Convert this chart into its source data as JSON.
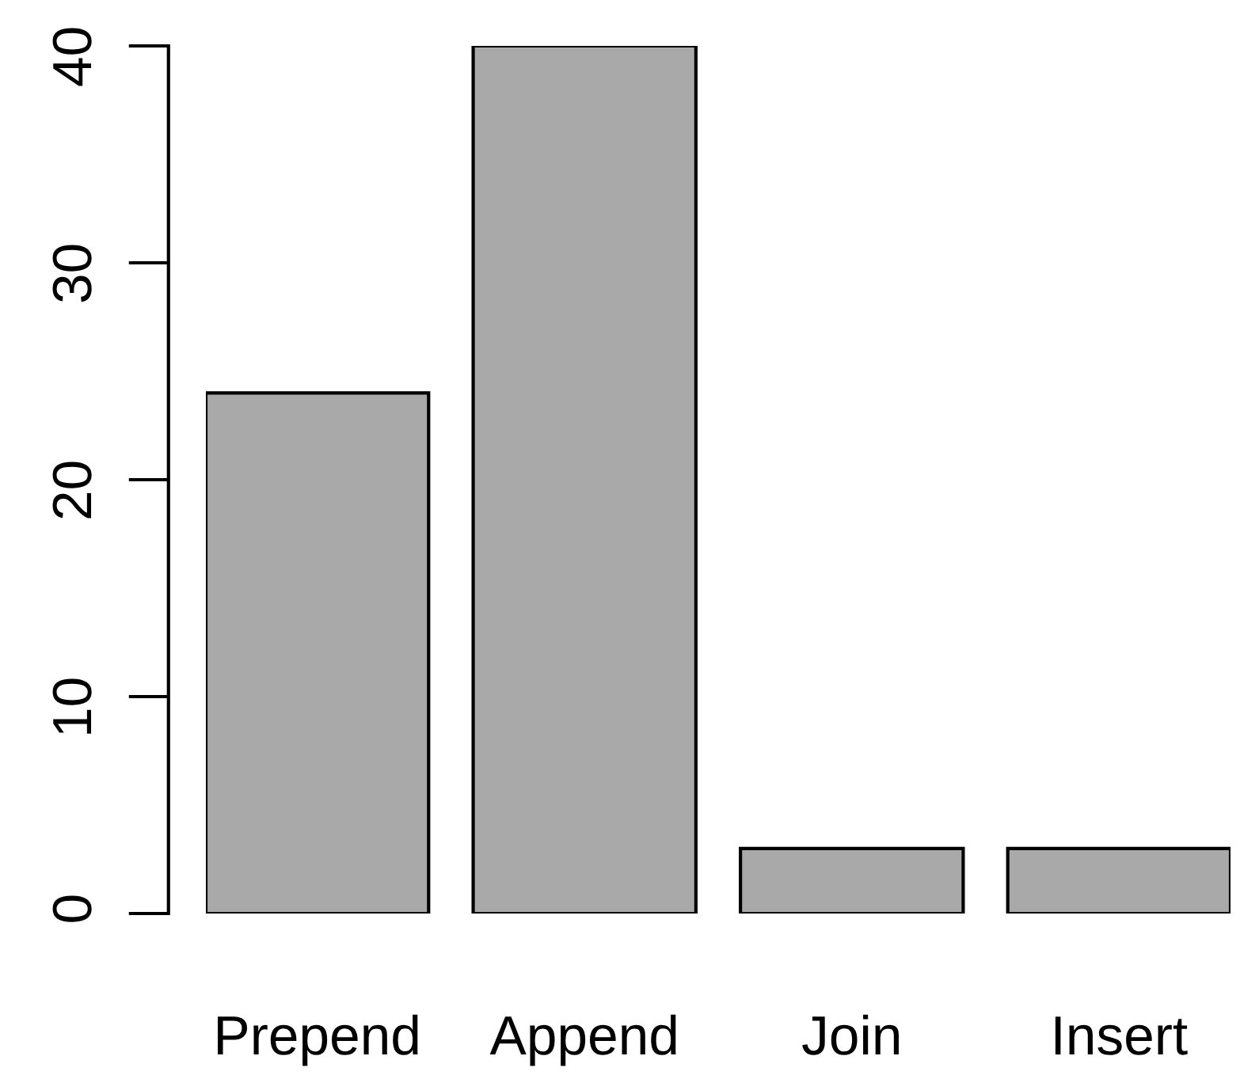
{
  "chart_data": {
    "type": "bar",
    "categories": [
      "Prepend",
      "Append",
      "Join",
      "Insert"
    ],
    "values": [
      24,
      40,
      3,
      3
    ],
    "color": "#a9a9a9",
    "ylim": [
      0,
      40
    ],
    "yticks": [
      0,
      10,
      20,
      30,
      40
    ],
    "grid": false,
    "legend": false
  }
}
